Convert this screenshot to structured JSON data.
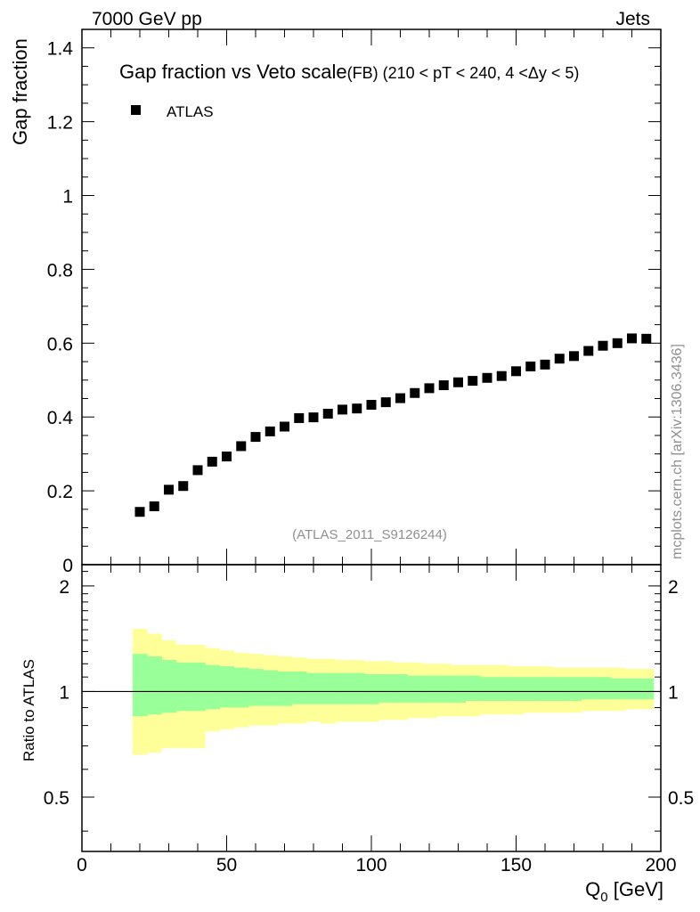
{
  "header": {
    "left": "7000 GeV pp",
    "right": "Jets"
  },
  "side_label": "mcplots.cern.ch [arXiv:1306.3436]",
  "watermark": "(ATLAS_2011_S9126244)",
  "colors": {
    "band_outer": "#ffff99",
    "band_inner": "#99ff99",
    "markers": "#000000"
  },
  "chart_data": [
    {
      "type": "scatter",
      "title_main": "Gap fraction vs Veto scale",
      "title_sub": "(FB) (210 < pT < 240, 4 <Δy < 5)",
      "ylabel": "Gap fraction",
      "xlim": [
        0,
        200
      ],
      "ylim": [
        0,
        1.45
      ],
      "y_ticks": [
        "0",
        "0.2",
        "0.4",
        "0.6",
        "0.8",
        "1",
        "1.2",
        "1.4"
      ],
      "legend": {
        "placement": "top-left",
        "entries": [
          "ATLAS"
        ]
      },
      "series": [
        {
          "name": "ATLAS",
          "x": [
            20,
            25,
            30,
            35,
            40,
            45,
            50,
            55,
            60,
            65,
            70,
            75,
            80,
            85,
            90,
            95,
            100,
            105,
            110,
            115,
            120,
            125,
            130,
            135,
            140,
            145,
            150,
            155,
            160,
            165,
            170,
            175,
            180,
            185,
            190,
            195
          ],
          "y": [
            0.143,
            0.158,
            0.203,
            0.213,
            0.256,
            0.279,
            0.293,
            0.321,
            0.346,
            0.361,
            0.374,
            0.397,
            0.399,
            0.409,
            0.42,
            0.423,
            0.433,
            0.44,
            0.451,
            0.465,
            0.478,
            0.486,
            0.494,
            0.498,
            0.506,
            0.511,
            0.524,
            0.537,
            0.542,
            0.558,
            0.565,
            0.579,
            0.593,
            0.6,
            0.613,
            0.612
          ]
        }
      ]
    },
    {
      "type": "area",
      "ylabel": "Ratio to ATLAS",
      "xlabel": "Q",
      "xlabel_sub": "0",
      "xlabel_unit": " [GeV]",
      "xlim": [
        0,
        200
      ],
      "ylim": [
        0.35,
        2.3
      ],
      "y_ticks": [
        "0.5",
        "1",
        "2"
      ],
      "x_ticks": [
        "0",
        "50",
        "100",
        "150",
        "200"
      ],
      "reference_line": 1,
      "bins": [
        17.5,
        22.5,
        27.5,
        32.5,
        37.5,
        42.5,
        47.5,
        52.5,
        57.5,
        62.5,
        67.5,
        72.5,
        77.5,
        82.5,
        87.5,
        92.5,
        97.5,
        102.5,
        107.5,
        112.5,
        117.5,
        122.5,
        127.5,
        132.5,
        137.5,
        142.5,
        147.5,
        152.5,
        157.5,
        162.5,
        167.5,
        172.5,
        177.5,
        182.5,
        187.5,
        192.5,
        197.5
      ],
      "outer_band": {
        "upper": [
          1.51,
          1.46,
          1.4,
          1.36,
          1.36,
          1.33,
          1.31,
          1.29,
          1.28,
          1.27,
          1.26,
          1.25,
          1.24,
          1.24,
          1.23,
          1.23,
          1.22,
          1.22,
          1.21,
          1.21,
          1.2,
          1.2,
          1.19,
          1.19,
          1.19,
          1.19,
          1.18,
          1.18,
          1.18,
          1.17,
          1.17,
          1.17,
          1.17,
          1.17,
          1.16,
          1.16
        ],
        "lower": [
          0.66,
          0.67,
          0.69,
          0.69,
          0.69,
          0.77,
          0.78,
          0.79,
          0.8,
          0.8,
          0.81,
          0.81,
          0.82,
          0.81,
          0.82,
          0.82,
          0.82,
          0.83,
          0.83,
          0.84,
          0.84,
          0.85,
          0.85,
          0.85,
          0.86,
          0.86,
          0.86,
          0.87,
          0.87,
          0.87,
          0.87,
          0.88,
          0.88,
          0.88,
          0.89,
          0.89
        ]
      },
      "inner_band": {
        "upper": [
          1.28,
          1.26,
          1.23,
          1.21,
          1.21,
          1.19,
          1.18,
          1.17,
          1.16,
          1.15,
          1.14,
          1.14,
          1.13,
          1.13,
          1.13,
          1.13,
          1.12,
          1.12,
          1.12,
          1.11,
          1.11,
          1.11,
          1.11,
          1.11,
          1.1,
          1.1,
          1.1,
          1.1,
          1.1,
          1.1,
          1.1,
          1.1,
          1.1,
          1.09,
          1.09,
          1.09
        ],
        "lower": [
          0.85,
          0.86,
          0.87,
          0.88,
          0.88,
          0.89,
          0.9,
          0.9,
          0.91,
          0.91,
          0.91,
          0.92,
          0.92,
          0.92,
          0.92,
          0.92,
          0.92,
          0.93,
          0.93,
          0.93,
          0.93,
          0.93,
          0.93,
          0.94,
          0.94,
          0.94,
          0.94,
          0.94,
          0.94,
          0.94,
          0.94,
          0.95,
          0.95,
          0.95,
          0.95,
          0.95
        ]
      }
    }
  ]
}
